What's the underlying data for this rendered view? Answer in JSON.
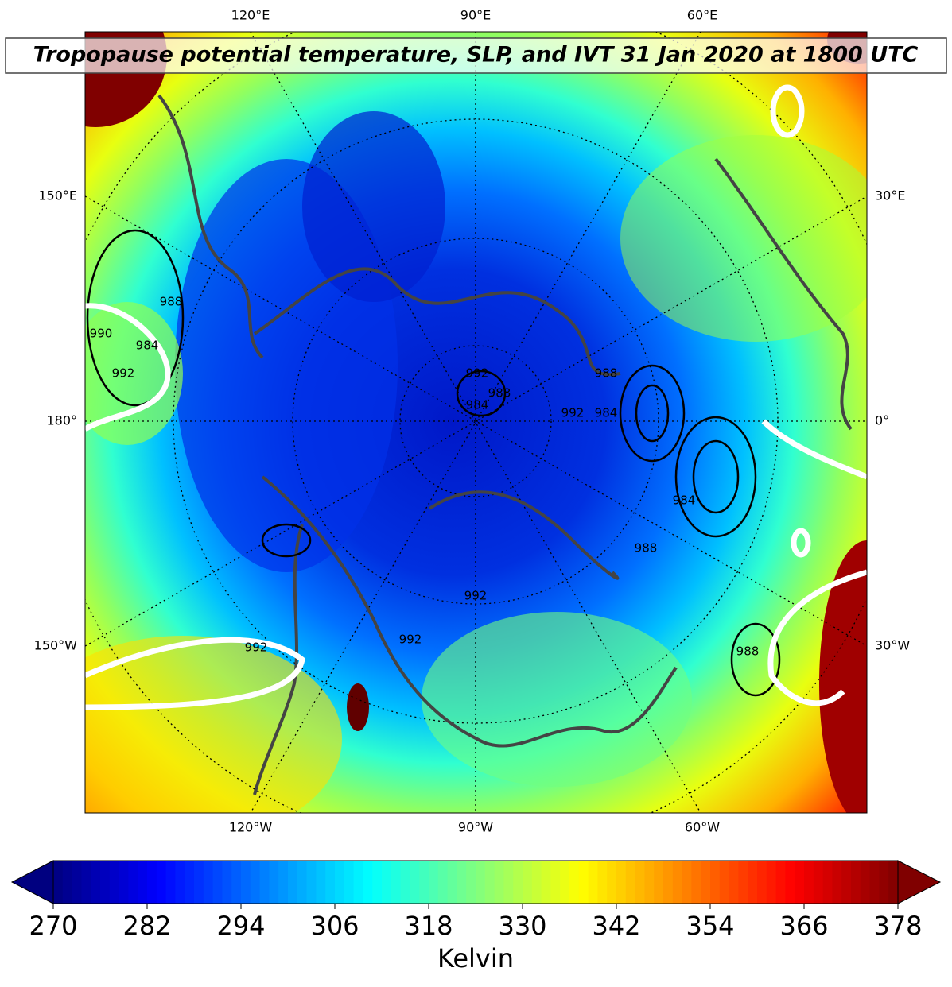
{
  "map": {
    "title": "Tropopause potential temperature, SLP, and IVT 31 Jan 2020 at 1800 UTC",
    "graticule_labels": {
      "top": [
        "120°E",
        "90°E",
        "60°E"
      ],
      "bottom": [
        "120°W",
        "90°W",
        "60°W"
      ],
      "left": [
        "150°E",
        "180°",
        "150°W"
      ],
      "right": [
        "30°E",
        "0°",
        "30°W"
      ]
    },
    "contour_labels": [
      "988",
      "990",
      "984",
      "992",
      "992",
      "988",
      "984",
      "992",
      "988",
      "984",
      "984",
      "988",
      "992",
      "992",
      "988",
      "992"
    ]
  },
  "colorbar": {
    "label": "Kelvin",
    "lim": [
      270,
      378
    ],
    "ticks": [
      270,
      282,
      294,
      306,
      318,
      330,
      342,
      354,
      366,
      378
    ],
    "extend": "both"
  }
}
